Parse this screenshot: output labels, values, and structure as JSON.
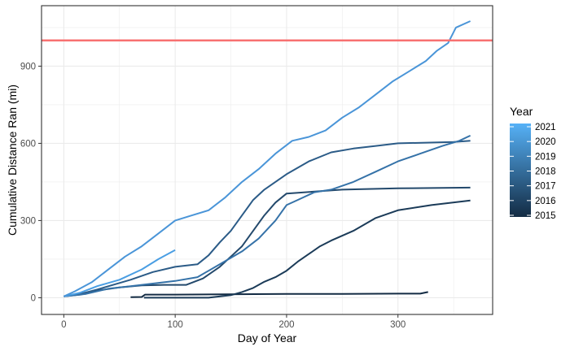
{
  "chart_data": {
    "type": "line",
    "title": "",
    "xlabel": "Day of Year",
    "ylabel": "Cumulative Distance Ran (mi)",
    "xlim": [
      -20,
      385
    ],
    "ylim": [
      -65,
      1135
    ],
    "x_ticks": [
      0,
      100,
      200,
      300
    ],
    "y_ticks": [
      0,
      300,
      600,
      900
    ],
    "grid": true,
    "reference_line": {
      "y": 1000,
      "color": "#f87171"
    },
    "legend": {
      "title": "Year",
      "position": "right",
      "labels": [
        "2021",
        "2020",
        "2019",
        "2018",
        "2017",
        "2016",
        "2015"
      ],
      "gradient_top": "#56b1f7",
      "gradient_bottom": "#132b43"
    },
    "series": [
      {
        "year": 2015,
        "color": "#132b43",
        "points": [
          [
            60,
            2
          ],
          [
            70,
            3
          ],
          [
            73,
            12
          ],
          [
            100,
            12
          ],
          [
            200,
            15
          ],
          [
            250,
            15
          ],
          [
            300,
            16
          ],
          [
            320,
            16
          ],
          [
            327,
            22
          ]
        ]
      },
      {
        "year": 2016,
        "color": "#1b3b58",
        "points": [
          [
            72,
            0
          ],
          [
            130,
            0
          ],
          [
            150,
            10
          ],
          [
            160,
            22
          ],
          [
            170,
            38
          ],
          [
            180,
            62
          ],
          [
            190,
            80
          ],
          [
            200,
            105
          ],
          [
            210,
            140
          ],
          [
            220,
            170
          ],
          [
            230,
            200
          ],
          [
            240,
            222
          ],
          [
            260,
            260
          ],
          [
            280,
            310
          ],
          [
            300,
            340
          ],
          [
            330,
            360
          ],
          [
            365,
            378
          ]
        ]
      },
      {
        "year": 2017,
        "color": "#23496c",
        "points": [
          [
            0,
            5
          ],
          [
            15,
            12
          ],
          [
            30,
            28
          ],
          [
            50,
            40
          ],
          [
            70,
            48
          ],
          [
            90,
            50
          ],
          [
            110,
            50
          ],
          [
            125,
            75
          ],
          [
            140,
            120
          ],
          [
            150,
            160
          ],
          [
            160,
            200
          ],
          [
            170,
            260
          ],
          [
            180,
            320
          ],
          [
            190,
            370
          ],
          [
            200,
            405
          ],
          [
            250,
            420
          ],
          [
            300,
            425
          ],
          [
            365,
            428
          ]
        ]
      },
      {
        "year": 2018,
        "color": "#2b5b87",
        "points": [
          [
            0,
            5
          ],
          [
            15,
            15
          ],
          [
            30,
            32
          ],
          [
            60,
            70
          ],
          [
            80,
            100
          ],
          [
            100,
            120
          ],
          [
            120,
            130
          ],
          [
            130,
            165
          ],
          [
            140,
            215
          ],
          [
            150,
            260
          ],
          [
            160,
            320
          ],
          [
            170,
            380
          ],
          [
            180,
            420
          ],
          [
            200,
            480
          ],
          [
            220,
            530
          ],
          [
            240,
            565
          ],
          [
            260,
            580
          ],
          [
            280,
            590
          ],
          [
            300,
            600
          ],
          [
            350,
            605
          ],
          [
            365,
            610
          ]
        ]
      },
      {
        "year": 2019,
        "color": "#3572a8",
        "points": [
          [
            0,
            5
          ],
          [
            20,
            15
          ],
          [
            40,
            35
          ],
          [
            60,
            45
          ],
          [
            80,
            55
          ],
          [
            100,
            65
          ],
          [
            120,
            80
          ],
          [
            140,
            130
          ],
          [
            160,
            180
          ],
          [
            175,
            230
          ],
          [
            190,
            300
          ],
          [
            200,
            360
          ],
          [
            210,
            380
          ],
          [
            225,
            410
          ],
          [
            240,
            420
          ],
          [
            260,
            450
          ],
          [
            280,
            490
          ],
          [
            300,
            530
          ],
          [
            320,
            560
          ],
          [
            340,
            590
          ],
          [
            355,
            610
          ],
          [
            365,
            630
          ]
        ]
      },
      {
        "year": 2020,
        "color": "#4a9ee3",
        "points": [
          [
            0,
            5
          ],
          [
            15,
            20
          ],
          [
            30,
            45
          ],
          [
            50,
            70
          ],
          [
            70,
            110
          ],
          [
            85,
            150
          ],
          [
            100,
            185
          ]
        ]
      },
      {
        "year": 2021,
        "color": "#4a95d8",
        "points": [
          [
            0,
            5
          ],
          [
            10,
            25
          ],
          [
            25,
            60
          ],
          [
            40,
            110
          ],
          [
            55,
            160
          ],
          [
            70,
            200
          ],
          [
            85,
            250
          ],
          [
            100,
            300
          ],
          [
            115,
            320
          ],
          [
            130,
            340
          ],
          [
            145,
            390
          ],
          [
            160,
            450
          ],
          [
            175,
            500
          ],
          [
            190,
            560
          ],
          [
            205,
            610
          ],
          [
            220,
            625
          ],
          [
            235,
            650
          ],
          [
            250,
            700
          ],
          [
            265,
            740
          ],
          [
            280,
            790
          ],
          [
            295,
            840
          ],
          [
            310,
            880
          ],
          [
            325,
            920
          ],
          [
            335,
            960
          ],
          [
            345,
            990
          ],
          [
            352,
            1050
          ],
          [
            365,
            1075
          ]
        ]
      }
    ]
  }
}
